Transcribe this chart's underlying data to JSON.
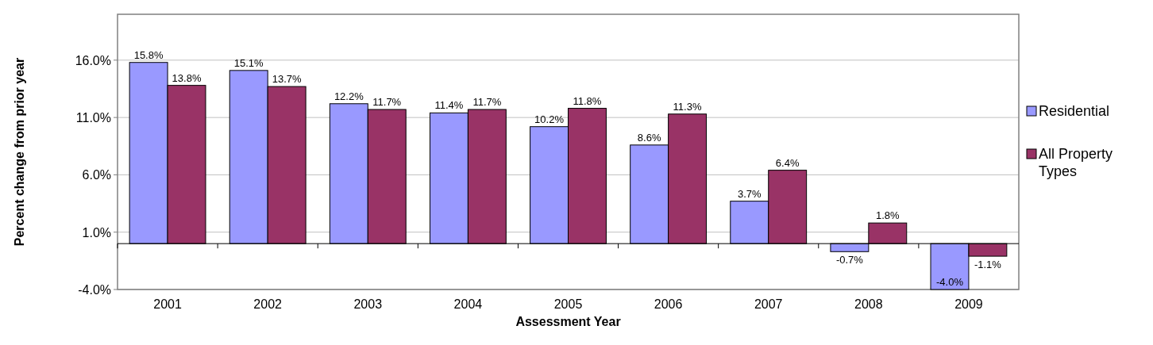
{
  "chart_data": {
    "type": "bar",
    "xlabel": "Assessment Year",
    "ylabel": "Percent change from prior year",
    "categories": [
      "2001",
      "2002",
      "2003",
      "2004",
      "2005",
      "2006",
      "2007",
      "2008",
      "2009"
    ],
    "series": [
      {
        "name": "Residential",
        "color": "#9999ff",
        "values": [
          15.8,
          15.1,
          12.2,
          11.4,
          10.2,
          8.6,
          3.7,
          -0.7,
          -4.0
        ],
        "value_labels": [
          "15.8%",
          "15.1%",
          "12.2%",
          "11.4%",
          "10.2%",
          "8.6%",
          "3.7%",
          "-0.7%",
          "-4.0%"
        ]
      },
      {
        "name": "All Property Types",
        "color": "#993366",
        "values": [
          13.8,
          13.7,
          11.7,
          11.7,
          11.8,
          11.3,
          6.4,
          1.8,
          -1.1
        ],
        "value_labels": [
          "13.8%",
          "13.7%",
          "11.7%",
          "11.7%",
          "11.8%",
          "11.3%",
          "6.4%",
          "1.8%",
          "-1.1%"
        ]
      }
    ],
    "ylim": [
      -4,
      20
    ],
    "yticks": [
      {
        "value": -4,
        "label": "-4.0%"
      },
      {
        "value": 1,
        "label": "1.0%"
      },
      {
        "value": 6,
        "label": "6.0%"
      },
      {
        "value": 11,
        "label": "11.0%"
      },
      {
        "value": 16,
        "label": "16.0%"
      }
    ],
    "grid": "y",
    "legend": "right"
  }
}
